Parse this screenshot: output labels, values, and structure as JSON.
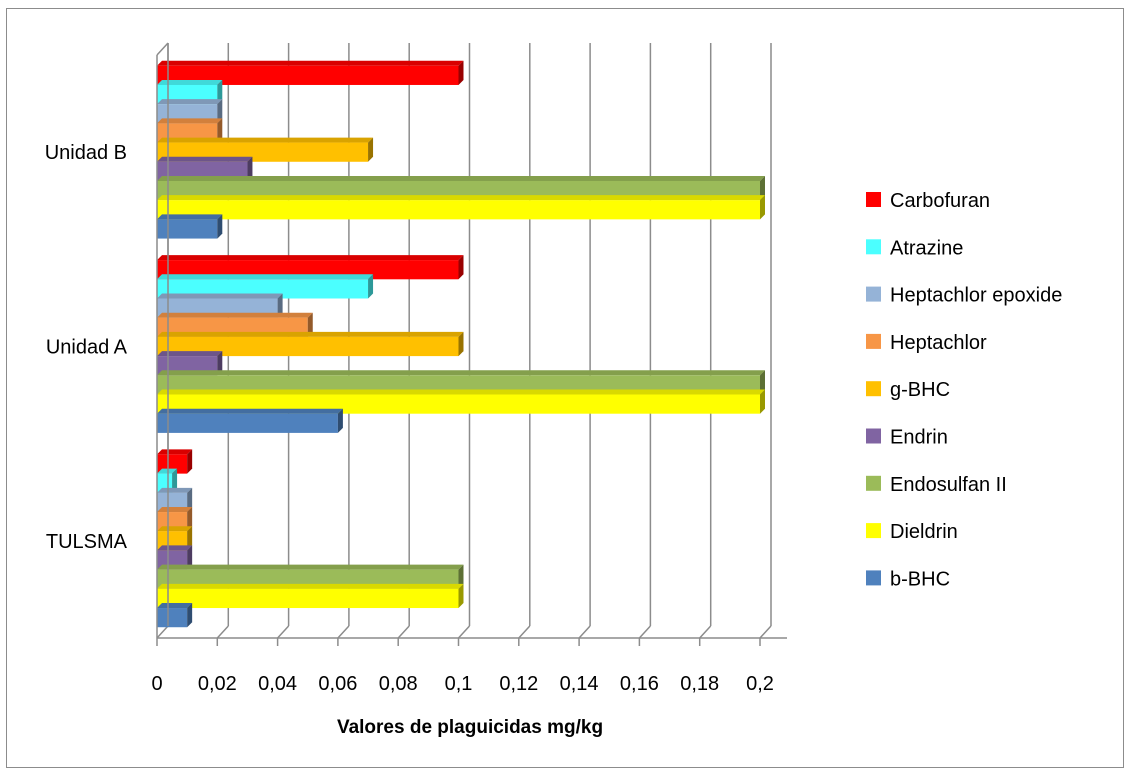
{
  "chart_data": {
    "type": "bar",
    "orientation": "horizontal",
    "style": "3d-clustered",
    "title": "",
    "xlabel": "Valores de plaguicidas mg/kg",
    "ylabel": "",
    "xlim": [
      0,
      0.2
    ],
    "x_ticks": [
      "0",
      "0,02",
      "0,04",
      "0,06",
      "0,08",
      "0,1",
      "0,12",
      "0,14",
      "0,16",
      "0,18",
      "0,2"
    ],
    "grid": "vertical",
    "legend_position": "right",
    "categories": [
      "TULSMA",
      "Unidad A",
      "Unidad B"
    ],
    "series": [
      {
        "name": "b-BHC",
        "color": "#4f81bd",
        "values": [
          0.01,
          0.06,
          0.02
        ]
      },
      {
        "name": "Dieldrin",
        "color": "#ffff00",
        "values": [
          0.1,
          0.2,
          0.2
        ]
      },
      {
        "name": "Endosulfan II",
        "color": "#9bbb59",
        "values": [
          0.1,
          0.2,
          0.2
        ]
      },
      {
        "name": "Endrin",
        "color": "#8064a2",
        "values": [
          0.01,
          0.02,
          0.03
        ]
      },
      {
        "name": "g-BHC",
        "color": "#ffc000",
        "values": [
          0.01,
          0.1,
          0.07
        ]
      },
      {
        "name": "Heptachlor",
        "color": "#f79646",
        "values": [
          0.01,
          0.05,
          0.02
        ]
      },
      {
        "name": "Heptachlor epoxide",
        "color": "#95b3d7",
        "values": [
          0.01,
          0.04,
          0.02
        ]
      },
      {
        "name": "Atrazine",
        "color": "#4bffff",
        "values": [
          0.005,
          0.07,
          0.02
        ]
      },
      {
        "name": "Carbofuran",
        "color": "#ff0000",
        "values": [
          0.01,
          0.1,
          0.1
        ]
      }
    ]
  }
}
